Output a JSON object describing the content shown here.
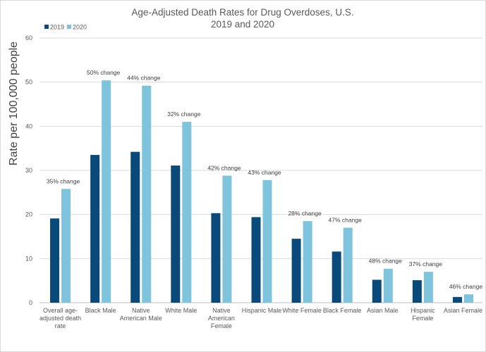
{
  "chart_data": {
    "type": "bar",
    "title_lines": [
      "Age-Adjusted Death Rates for Drug Overdoses, U.S.",
      "2019 and 2020"
    ],
    "ylabel": "Rate per 100,000 people",
    "xlabel": "",
    "ylim": [
      0,
      60
    ],
    "yticks": [
      0,
      10,
      20,
      30,
      40,
      50,
      60
    ],
    "grid": true,
    "legend_position": "top-left",
    "categories": [
      [
        "Overall age-",
        "adjusted death",
        "rate"
      ],
      [
        "Black Male"
      ],
      [
        "Native",
        "American Male"
      ],
      [
        "White Male"
      ],
      [
        "Native",
        "American",
        "Female"
      ],
      [
        "Hispanic Male"
      ],
      [
        "White Female"
      ],
      [
        "Black Female"
      ],
      [
        "Asian Male"
      ],
      [
        "Hispanic",
        "Female"
      ],
      [
        "Asian Female"
      ]
    ],
    "series": [
      {
        "name": "2019",
        "color": "#0a4a7a",
        "values": [
          19.1,
          33.5,
          34.2,
          31.1,
          20.3,
          19.4,
          14.5,
          11.6,
          5.2,
          5.1,
          1.3
        ]
      },
      {
        "name": "2020",
        "color": "#7ec4dc",
        "values": [
          25.8,
          50.4,
          49.2,
          41.0,
          28.8,
          27.8,
          18.5,
          17.0,
          7.7,
          7.0,
          1.9
        ]
      }
    ],
    "annotations": [
      "35% change",
      "50% change",
      "44% change",
      "32% change",
      "42% change",
      "43% change",
      "28% change",
      "47% change",
      "48% change",
      "37% change",
      "46% change"
    ],
    "colors": {
      "grid": "#d9d9d9",
      "axis": "#bfbfbf",
      "text": "#595959"
    }
  }
}
